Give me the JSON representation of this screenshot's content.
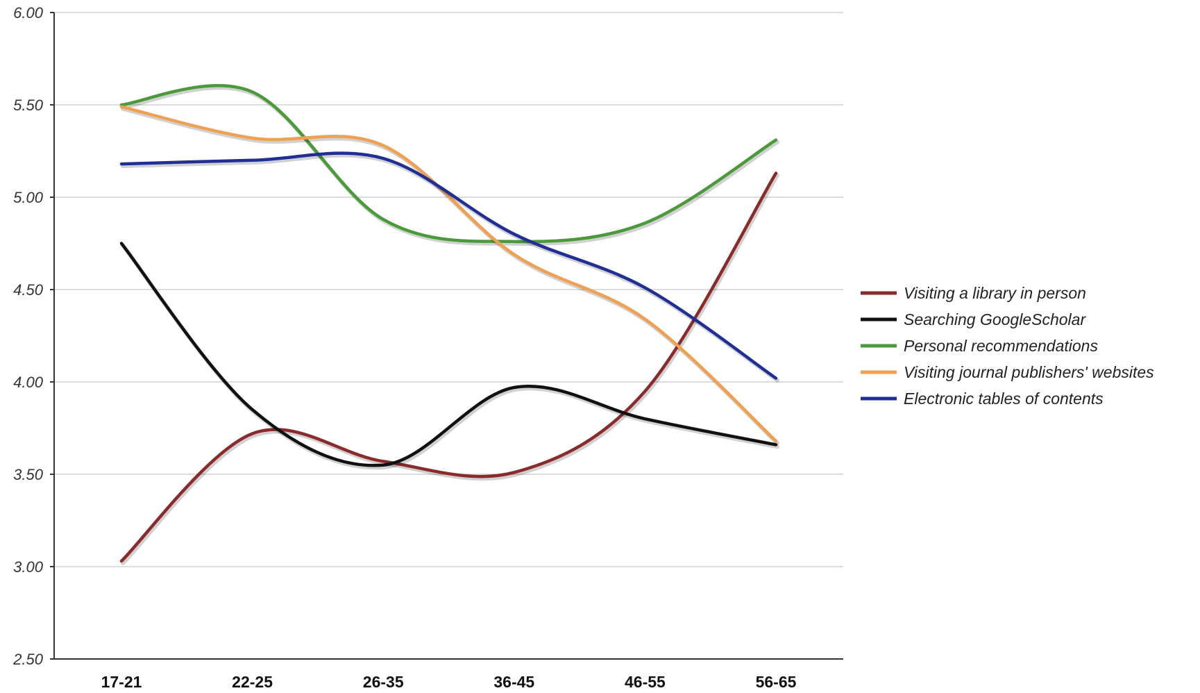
{
  "chart_data": {
    "type": "line",
    "title": "",
    "xlabel": "",
    "ylabel": "",
    "categories": [
      "17-21",
      "22-25",
      "26-35",
      "36-45",
      "46-55",
      "56-65"
    ],
    "ylim": [
      2.5,
      6.0
    ],
    "yticks": [
      "2.50",
      "3.00",
      "3.50",
      "4.00",
      "4.50",
      "5.00",
      "5.50",
      "6.00"
    ],
    "grid": true,
    "smooth": true,
    "legend_position": "right",
    "series": [
      {
        "name": "Visiting a library in person",
        "color": "#8b2a2a",
        "values": [
          3.03,
          3.72,
          3.57,
          3.51,
          3.95,
          5.13
        ]
      },
      {
        "name": "Searching GoogleScholar",
        "color": "#111111",
        "values": [
          4.75,
          3.85,
          3.55,
          3.97,
          3.8,
          3.66
        ]
      },
      {
        "name": "Personal recommendations",
        "color": "#4b9a3a",
        "values": [
          5.5,
          5.57,
          4.88,
          4.76,
          4.86,
          5.31
        ]
      },
      {
        "name": "Visiting journal publishers' websites",
        "color": "#f0a050",
        "values": [
          5.49,
          5.32,
          5.28,
          4.69,
          4.34,
          3.68
        ]
      },
      {
        "name": "Electronic tables of contents",
        "color": "#1f2f95",
        "values": [
          5.18,
          5.2,
          5.21,
          4.8,
          4.51,
          4.02
        ]
      }
    ]
  }
}
